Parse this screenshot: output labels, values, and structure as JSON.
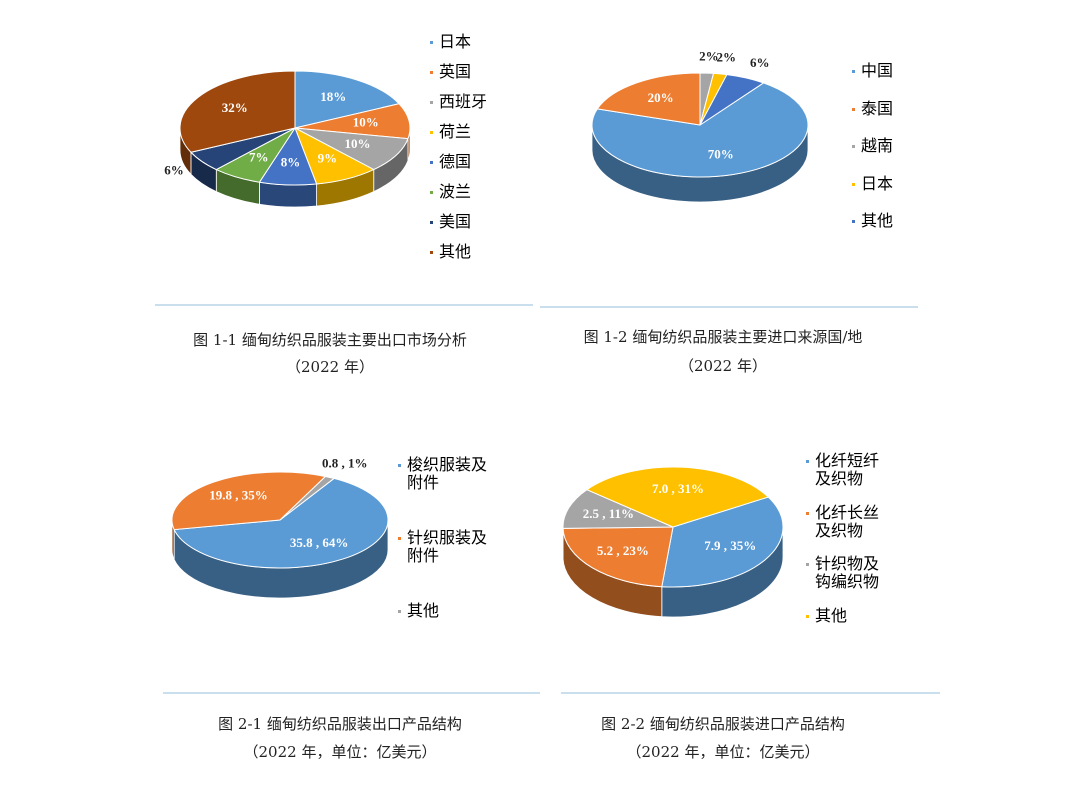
{
  "chart_data": [
    {
      "type": "pie",
      "start_angle": 0,
      "categories": [
        "日本",
        "英国",
        "西班牙",
        "荷兰",
        "德国",
        "波兰",
        "美国",
        "其他"
      ],
      "values": [
        18,
        10,
        10,
        9,
        8,
        7,
        6,
        32
      ],
      "value_labels": [
        "18%",
        "10%",
        "10%",
        "9%",
        "8%",
        "7%",
        "6%",
        "32%"
      ],
      "colors": [
        "#5b9bd5",
        "#ed7d31",
        "#a5a5a5",
        "#ffc000",
        "#4472c4",
        "#70ad47",
        "#264478",
        "#9e480e"
      ],
      "caption": "图 1-1 缅甸纺织品服装主要出口市场分析",
      "caption_note": "（2022 年）"
    },
    {
      "type": "pie",
      "start_angle": 36,
      "categories": [
        "中国",
        "泰国",
        "越南",
        "日本",
        "其他"
      ],
      "values": [
        70,
        20,
        2,
        2,
        6
      ],
      "value_labels": [
        "70%",
        "20%",
        "2%",
        "2%",
        "6%"
      ],
      "colors": [
        "#5b9bd5",
        "#ed7d31",
        "#a5a5a5",
        "#ffc000",
        "#4472c4"
      ],
      "caption": "图 1-2 缅甸纺织品服装主要进口来源国/地",
      "caption_note": "（2022 年）"
    },
    {
      "type": "pie",
      "start_angle": 30,
      "categories": [
        "梭织服装及附件",
        "针织服装及附件",
        "其他"
      ],
      "values": [
        35.8,
        19.8,
        0.8
      ],
      "value_labels": [
        "35.8 , 64%",
        "19.8 , 35%",
        "0.8 , 1%"
      ],
      "colors": [
        "#5b9bd5",
        "#ed7d31",
        "#a5a5a5"
      ],
      "caption": "图 2-1 缅甸纺织品服装出口产品结构",
      "caption_note": "（2022 年，单位：亿美元）"
    },
    {
      "type": "pie",
      "start_angle": 60,
      "categories": [
        "化纤短纤及织物",
        "化纤长丝及织物",
        "针织物及钩编织物",
        "其他"
      ],
      "values": [
        7.9,
        5.2,
        2.5,
        7
      ],
      "value_labels": [
        "7.9 , 35%",
        "5.2 , 23%",
        "2.5 , 11%",
        "7.0 , 31%"
      ],
      "colors": [
        "#5b9bd5",
        "#ed7d31",
        "#a5a5a5",
        "#ffc000"
      ],
      "caption": "图 2-2 缅甸纺织品服装进口产品结构",
      "caption_note": "（2022 年，单位：亿美元）"
    }
  ]
}
